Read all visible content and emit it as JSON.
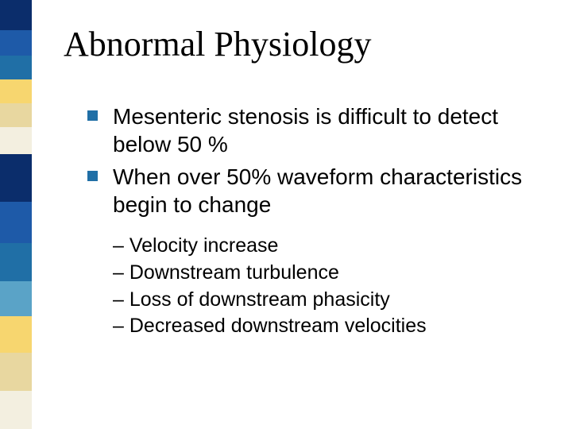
{
  "stripes": {
    "colors": [
      "#0b2d6b",
      "#1e5aa8",
      "#206fa6",
      "#f7d66f",
      "#e8d7a0",
      "#f3efe0",
      "#0b2d6b",
      "#1e5aa8",
      "#206fa6",
      "#5aa3c7",
      "#f7d66f",
      "#e8d7a0",
      "#f3efe0"
    ],
    "heights": [
      38,
      32,
      30,
      30,
      30,
      34,
      60,
      52,
      48,
      44,
      46,
      48,
      48
    ]
  },
  "title": "Abnormal Physiology",
  "bullet_color": "#206fa6",
  "bullets": [
    "Mesenteric stenosis is difficult to detect below 50 %",
    "When over 50% waveform characteristics begin to change"
  ],
  "sub_bullets": [
    "Velocity increase",
    "Downstream turbulence",
    "Loss of downstream phasicity",
    "Decreased downstream velocities"
  ]
}
